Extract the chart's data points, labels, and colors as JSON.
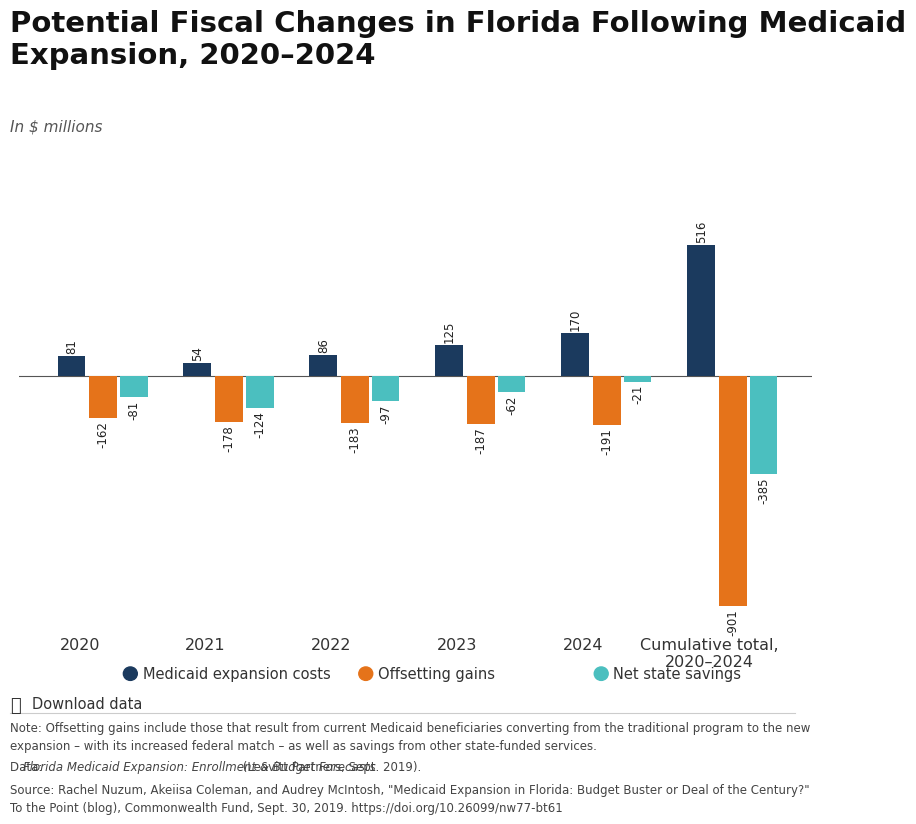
{
  "title": "Potential Fiscal Changes in Florida Following Medicaid\nExpansion, 2020–2024",
  "subtitle": "In $ millions",
  "categories": [
    "2020",
    "2021",
    "2022",
    "2023",
    "2024",
    "Cumulative total,\n2020–2024"
  ],
  "medicaid_costs": [
    81,
    54,
    86,
    125,
    170,
    516
  ],
  "offsetting_gains": [
    -162,
    -178,
    -183,
    -187,
    -191,
    -901
  ],
  "net_savings": [
    -81,
    -124,
    -97,
    -62,
    -21,
    -385
  ],
  "bar_width": 0.22,
  "color_medicaid": "#1b3a5e",
  "color_offsetting": "#e5731a",
  "color_net": "#4bbfbf",
  "legend_labels": [
    "Medicaid expansion costs",
    "Offsetting gains",
    "Net state savings"
  ],
  "note_text": "Note: Offsetting gains include those that result from current Medicaid beneficiaries converting from the traditional program to the new\nexpansion – with its increased federal match – as well as savings from other state-funded services.",
  "data_text_normal": "Data: ",
  "data_text_italic": "Florida Medicaid Expansion: Enrollment & Budget Forecasts",
  "data_text_end": " (Leavitt Partners, Sept. 2019).",
  "source_text": "Source: Rachel Nuzum, Akeiisa Coleman, and Audrey McIntosh, \"Medicaid Expansion in Florida: Budget Buster or Deal of the Century?\"\nTo the Point (blog), Commonwealth Fund, Sept. 30, 2019. https://doi.org/10.26099/nw77-bt61",
  "ylim": [
    -970,
    600
  ],
  "background_color": "#ffffff"
}
